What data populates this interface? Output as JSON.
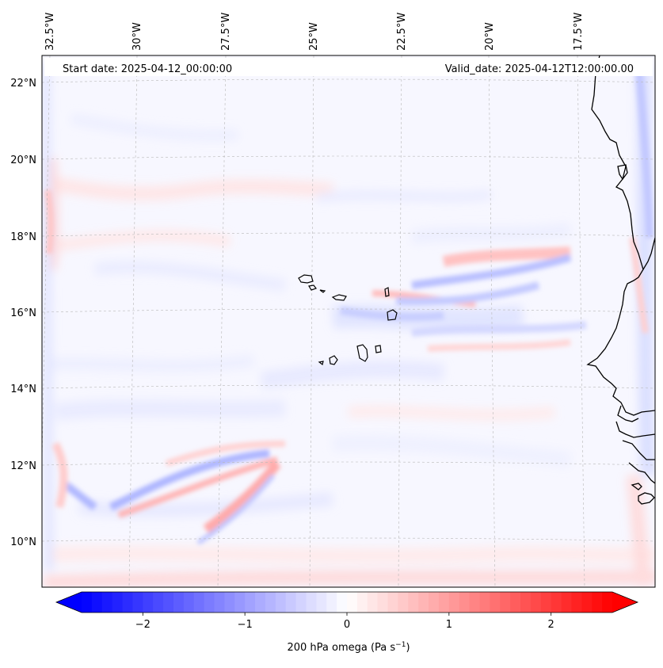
{
  "map": {
    "start_date": "Start date: 2025-04-12_00:00:00",
    "valid_date": "Valid_date: 2025-04-12T12:00:00.00",
    "lon_labels": [
      "32.5°W",
      "30°W",
      "27.5°W",
      "25°W",
      "22.5°W",
      "20°W",
      "17.5°W"
    ],
    "lat_labels": [
      "22°N",
      "20°N",
      "18°N",
      "16°N",
      "14°N",
      "12°N",
      "10°N"
    ],
    "colorbar": {
      "ticks": [
        "−2",
        "−1",
        "0",
        "1",
        "2"
      ],
      "label_prefix": "200 hPa omega (Pa s",
      "label_sup": "−1",
      "label_suffix": ")",
      "min": -2.6,
      "max": 2.6,
      "low_color": "#0000ff",
      "mid_color": "#ffffff",
      "high_color": "#ff0000"
    }
  }
}
